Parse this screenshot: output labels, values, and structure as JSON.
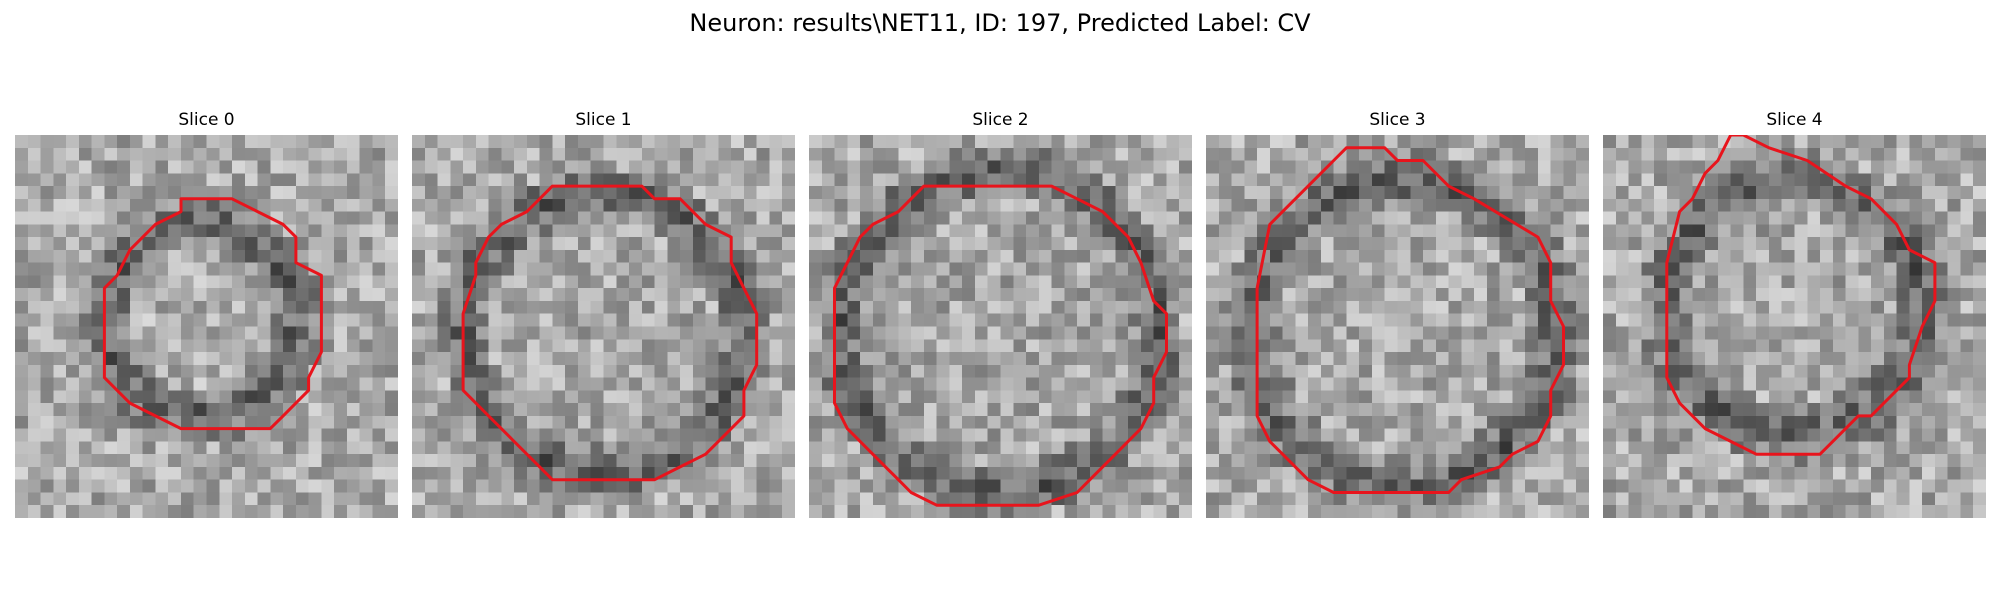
{
  "figure": {
    "title": "Neuron: results\\NET11, ID: 197, Predicted Label: CV"
  },
  "panels": [
    {
      "title": "Slice 0"
    },
    {
      "title": "Slice 1"
    },
    {
      "title": "Slice 2"
    },
    {
      "title": "Slice 3"
    },
    {
      "title": "Slice 4"
    }
  ],
  "colors": {
    "contour": "#e8141c",
    "background": "#ffffff"
  }
}
